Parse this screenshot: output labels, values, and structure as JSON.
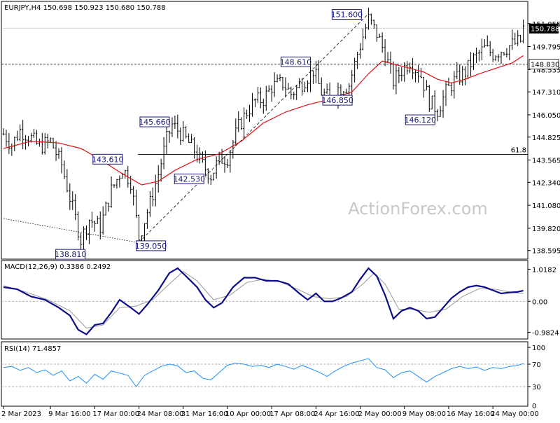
{
  "chart_data": {
    "type": "candlestick",
    "symbol_header": "EURJPY,H4  150.698 150.923 150.680 150.788",
    "watermark": "ActionForex.com",
    "price_axis": {
      "ticks": [
        "151.055",
        "149.795",
        "148.535",
        "147.310",
        "146.050",
        "144.825",
        "143.565",
        "142.340",
        "141.080",
        "139.820",
        "138.595"
      ],
      "range": [
        138.2,
        152.2
      ]
    },
    "price_badges": [
      {
        "label": "150.788",
        "value": 150.788,
        "style": "dark"
      },
      {
        "label": "148.830",
        "value": 148.83,
        "style": "light"
      }
    ],
    "horizontal_levels": [
      {
        "value": 148.83,
        "style": "dashed"
      },
      {
        "value": 143.87,
        "style": "solid",
        "label": "61.8"
      }
    ],
    "callouts": [
      {
        "text": "151.600",
        "bar": 132,
        "price": 151.6
      },
      {
        "text": "148.610",
        "bar": 112,
        "price": 148.61
      },
      {
        "text": "146.850",
        "bar": 118,
        "price": 146.85
      },
      {
        "text": "146.120",
        "bar": 154,
        "price": 146.12
      },
      {
        "text": "145.660",
        "bar": 61,
        "price": 145.66
      },
      {
        "text": "143.610",
        "bar": 44,
        "price": 143.61
      },
      {
        "text": "142.530",
        "bar": 75,
        "price": 142.53
      },
      {
        "text": "138.810",
        "bar": 28,
        "price": 138.81
      },
      {
        "text": "139.050",
        "bar": 49,
        "price": 139.05
      }
    ],
    "trendlines": [
      {
        "from": [
          49,
          139.05
        ],
        "to": [
          132,
          151.6
        ],
        "style": "dashed"
      },
      {
        "from": [
          0,
          140.35
        ],
        "to": [
          48,
          139.05
        ],
        "style": "dotted"
      }
    ],
    "close_path": [
      [
        0,
        145.0
      ],
      [
        3,
        144.4
      ],
      [
        6,
        145.2
      ],
      [
        9,
        144.9
      ],
      [
        13,
        144.3
      ],
      [
        17,
        144.6
      ],
      [
        21,
        143.3
      ],
      [
        24,
        141.5
      ],
      [
        28,
        139.2
      ],
      [
        31,
        140.3
      ],
      [
        35,
        139.9
      ],
      [
        39,
        141.9
      ],
      [
        43,
        143.1
      ],
      [
        46,
        142.4
      ],
      [
        49,
        139.3
      ],
      [
        53,
        141.2
      ],
      [
        56,
        142.8
      ],
      [
        59,
        144.7
      ],
      [
        61,
        145.5
      ],
      [
        65,
        144.9
      ],
      [
        69,
        144.1
      ],
      [
        72,
        143.3
      ],
      [
        75,
        142.7
      ],
      [
        78,
        143.6
      ],
      [
        81,
        143.7
      ],
      [
        85,
        145.4
      ],
      [
        88,
        146.2
      ],
      [
        91,
        146.8
      ],
      [
        94,
        146.9
      ],
      [
        97,
        147.6
      ],
      [
        101,
        147.8
      ],
      [
        104,
        147.2
      ],
      [
        108,
        147.8
      ],
      [
        112,
        148.5
      ],
      [
        115,
        147.3
      ],
      [
        118,
        146.9
      ],
      [
        121,
        147.5
      ],
      [
        125,
        147.7
      ],
      [
        128,
        149.4
      ],
      [
        132,
        151.3
      ],
      [
        135,
        150.5
      ],
      [
        138,
        149.4
      ],
      [
        141,
        147.9
      ],
      [
        144,
        148.5
      ],
      [
        147,
        149.0
      ],
      [
        151,
        148.2
      ],
      [
        154,
        146.8
      ],
      [
        157,
        146.3
      ],
      [
        160,
        147.3
      ],
      [
        163,
        147.9
      ],
      [
        167,
        148.4
      ],
      [
        170,
        149.1
      ],
      [
        174,
        149.7
      ],
      [
        177,
        149.4
      ],
      [
        180,
        149.6
      ],
      [
        184,
        149.9
      ],
      [
        187,
        150.1
      ],
      [
        188,
        150.8
      ]
    ],
    "ma_path": [
      [
        0,
        144.2
      ],
      [
        10,
        144.6
      ],
      [
        20,
        144.5
      ],
      [
        28,
        144.2
      ],
      [
        35,
        143.6
      ],
      [
        42,
        142.9
      ],
      [
        50,
        142.2
      ],
      [
        56,
        142.4
      ],
      [
        62,
        143.0
      ],
      [
        70,
        143.6
      ],
      [
        78,
        143.9
      ],
      [
        86,
        144.6
      ],
      [
        94,
        145.6
      ],
      [
        102,
        146.2
      ],
      [
        110,
        146.6
      ],
      [
        118,
        146.9
      ],
      [
        126,
        147.3
      ],
      [
        132,
        148.3
      ],
      [
        137,
        149.0
      ],
      [
        142,
        148.8
      ],
      [
        147,
        148.6
      ],
      [
        152,
        148.4
      ],
      [
        157,
        148.0
      ],
      [
        162,
        147.8
      ],
      [
        167,
        148.0
      ],
      [
        172,
        148.3
      ],
      [
        178,
        148.6
      ],
      [
        184,
        148.9
      ],
      [
        188,
        149.3
      ]
    ],
    "x_axis": [
      {
        "label": "2 Mar 2023",
        "bar": 0
      },
      {
        "label": "9 Mar 16:00",
        "bar": 17
      },
      {
        "label": "17 Mar 00:00",
        "bar": 33
      },
      {
        "label": "24 Mar 08:00",
        "bar": 49
      },
      {
        "label": "31 Mar 16:00",
        "bar": 65
      },
      {
        "label": "10 Apr 00:00",
        "bar": 81
      },
      {
        "label": "17 Apr 08:00",
        "bar": 97
      },
      {
        "label": "24 Apr 16:00",
        "bar": 113
      },
      {
        "label": "2 May 00:00",
        "bar": 129
      },
      {
        "label": "9 May 08:00",
        "bar": 145
      },
      {
        "label": "16 May 16:00",
        "bar": 161
      },
      {
        "label": "24 May 00:00",
        "bar": 177
      }
    ],
    "macd": {
      "header": "MACD(12,26,9) 0.3386 0.2492",
      "ticks": [
        {
          "label": "1.0182",
          "value": 1.0182
        },
        {
          "label": "0.00",
          "value": 0
        },
        {
          "label": "-0.9824",
          "value": -0.9824
        }
      ],
      "range": [
        -1.15,
        1.25
      ],
      "main": [
        [
          0,
          0.45
        ],
        [
          5,
          0.38
        ],
        [
          10,
          0.15
        ],
        [
          15,
          0.05
        ],
        [
          20,
          -0.2
        ],
        [
          24,
          -0.45
        ],
        [
          27,
          -0.9
        ],
        [
          30,
          -1.05
        ],
        [
          33,
          -0.75
        ],
        [
          36,
          -0.7
        ],
        [
          39,
          -0.35
        ],
        [
          42,
          0.05
        ],
        [
          46,
          -0.2
        ],
        [
          49,
          -0.4
        ],
        [
          52,
          -0.1
        ],
        [
          56,
          0.35
        ],
        [
          60,
          0.9
        ],
        [
          63,
          1.05
        ],
        [
          66,
          0.8
        ],
        [
          70,
          0.45
        ],
        [
          73,
          0.05
        ],
        [
          76,
          -0.2
        ],
        [
          79,
          -0.05
        ],
        [
          83,
          0.45
        ],
        [
          87,
          0.75
        ],
        [
          91,
          0.75
        ],
        [
          95,
          0.65
        ],
        [
          99,
          0.65
        ],
        [
          103,
          0.55
        ],
        [
          107,
          0.25
        ],
        [
          110,
          0.05
        ],
        [
          113,
          0.25
        ],
        [
          116,
          0.0
        ],
        [
          119,
          0.0
        ],
        [
          122,
          0.1
        ],
        [
          126,
          0.3
        ],
        [
          129,
          0.7
        ],
        [
          132,
          1.05
        ],
        [
          135,
          0.8
        ],
        [
          138,
          0.2
        ],
        [
          141,
          -0.55
        ],
        [
          144,
          -0.3
        ],
        [
          147,
          -0.2
        ],
        [
          150,
          -0.3
        ],
        [
          153,
          -0.55
        ],
        [
          156,
          -0.5
        ],
        [
          159,
          -0.2
        ],
        [
          162,
          0.1
        ],
        [
          165,
          0.3
        ],
        [
          168,
          0.45
        ],
        [
          171,
          0.5
        ],
        [
          174,
          0.45
        ],
        [
          177,
          0.35
        ],
        [
          180,
          0.25
        ],
        [
          183,
          0.28
        ],
        [
          186,
          0.3
        ],
        [
          188,
          0.34
        ]
      ],
      "signal": [
        [
          0,
          0.5
        ],
        [
          8,
          0.3
        ],
        [
          16,
          0.05
        ],
        [
          24,
          -0.3
        ],
        [
          30,
          -0.85
        ],
        [
          36,
          -0.75
        ],
        [
          42,
          -0.2
        ],
        [
          48,
          -0.15
        ],
        [
          54,
          0.05
        ],
        [
          60,
          0.55
        ],
        [
          65,
          0.95
        ],
        [
          70,
          0.65
        ],
        [
          76,
          0.05
        ],
        [
          82,
          0.2
        ],
        [
          88,
          0.6
        ],
        [
          94,
          0.7
        ],
        [
          100,
          0.62
        ],
        [
          106,
          0.4
        ],
        [
          112,
          0.15
        ],
        [
          118,
          0.08
        ],
        [
          124,
          0.15
        ],
        [
          130,
          0.55
        ],
        [
          134,
          0.9
        ],
        [
          138,
          0.55
        ],
        [
          143,
          -0.25
        ],
        [
          148,
          -0.25
        ],
        [
          154,
          -0.35
        ],
        [
          160,
          -0.25
        ],
        [
          166,
          0.15
        ],
        [
          172,
          0.4
        ],
        [
          178,
          0.38
        ],
        [
          184,
          0.28
        ],
        [
          188,
          0.25
        ]
      ]
    },
    "rsi": {
      "header": "RSI(14) 71.4857",
      "ticks": [
        {
          "label": "100",
          "value": 100
        },
        {
          "label": "70",
          "value": 70
        },
        {
          "label": "30",
          "value": 30
        },
        {
          "label": "0",
          "value": 0
        }
      ],
      "levels": [
        70,
        30
      ],
      "range": [
        0,
        100
      ],
      "path": [
        [
          0,
          64
        ],
        [
          3,
          66
        ],
        [
          6,
          59
        ],
        [
          9,
          64
        ],
        [
          12,
          55
        ],
        [
          15,
          60
        ],
        [
          18,
          50
        ],
        [
          21,
          58
        ],
        [
          24,
          40
        ],
        [
          27,
          48
        ],
        [
          30,
          36
        ],
        [
          33,
          52
        ],
        [
          36,
          43
        ],
        [
          39,
          58
        ],
        [
          42,
          54
        ],
        [
          45,
          50
        ],
        [
          48,
          30
        ],
        [
          51,
          50
        ],
        [
          54,
          58
        ],
        [
          57,
          66
        ],
        [
          60,
          70
        ],
        [
          63,
          67
        ],
        [
          66,
          55
        ],
        [
          69,
          58
        ],
        [
          72,
          45
        ],
        [
          75,
          42
        ],
        [
          78,
          55
        ],
        [
          81,
          68
        ],
        [
          84,
          72
        ],
        [
          87,
          70
        ],
        [
          90,
          66
        ],
        [
          93,
          68
        ],
        [
          96,
          64
        ],
        [
          99,
          70
        ],
        [
          102,
          66
        ],
        [
          105,
          61
        ],
        [
          108,
          68
        ],
        [
          111,
          62
        ],
        [
          114,
          56
        ],
        [
          117,
          48
        ],
        [
          120,
          58
        ],
        [
          123,
          66
        ],
        [
          126,
          72
        ],
        [
          129,
          76
        ],
        [
          132,
          80
        ],
        [
          135,
          64
        ],
        [
          138,
          60
        ],
        [
          141,
          46
        ],
        [
          144,
          55
        ],
        [
          147,
          58
        ],
        [
          150,
          48
        ],
        [
          153,
          38
        ],
        [
          156,
          48
        ],
        [
          159,
          55
        ],
        [
          162,
          62
        ],
        [
          165,
          66
        ],
        [
          168,
          62
        ],
        [
          171,
          65
        ],
        [
          174,
          59
        ],
        [
          177,
          64
        ],
        [
          180,
          62
        ],
        [
          183,
          66
        ],
        [
          186,
          68
        ],
        [
          188,
          71
        ]
      ]
    }
  }
}
